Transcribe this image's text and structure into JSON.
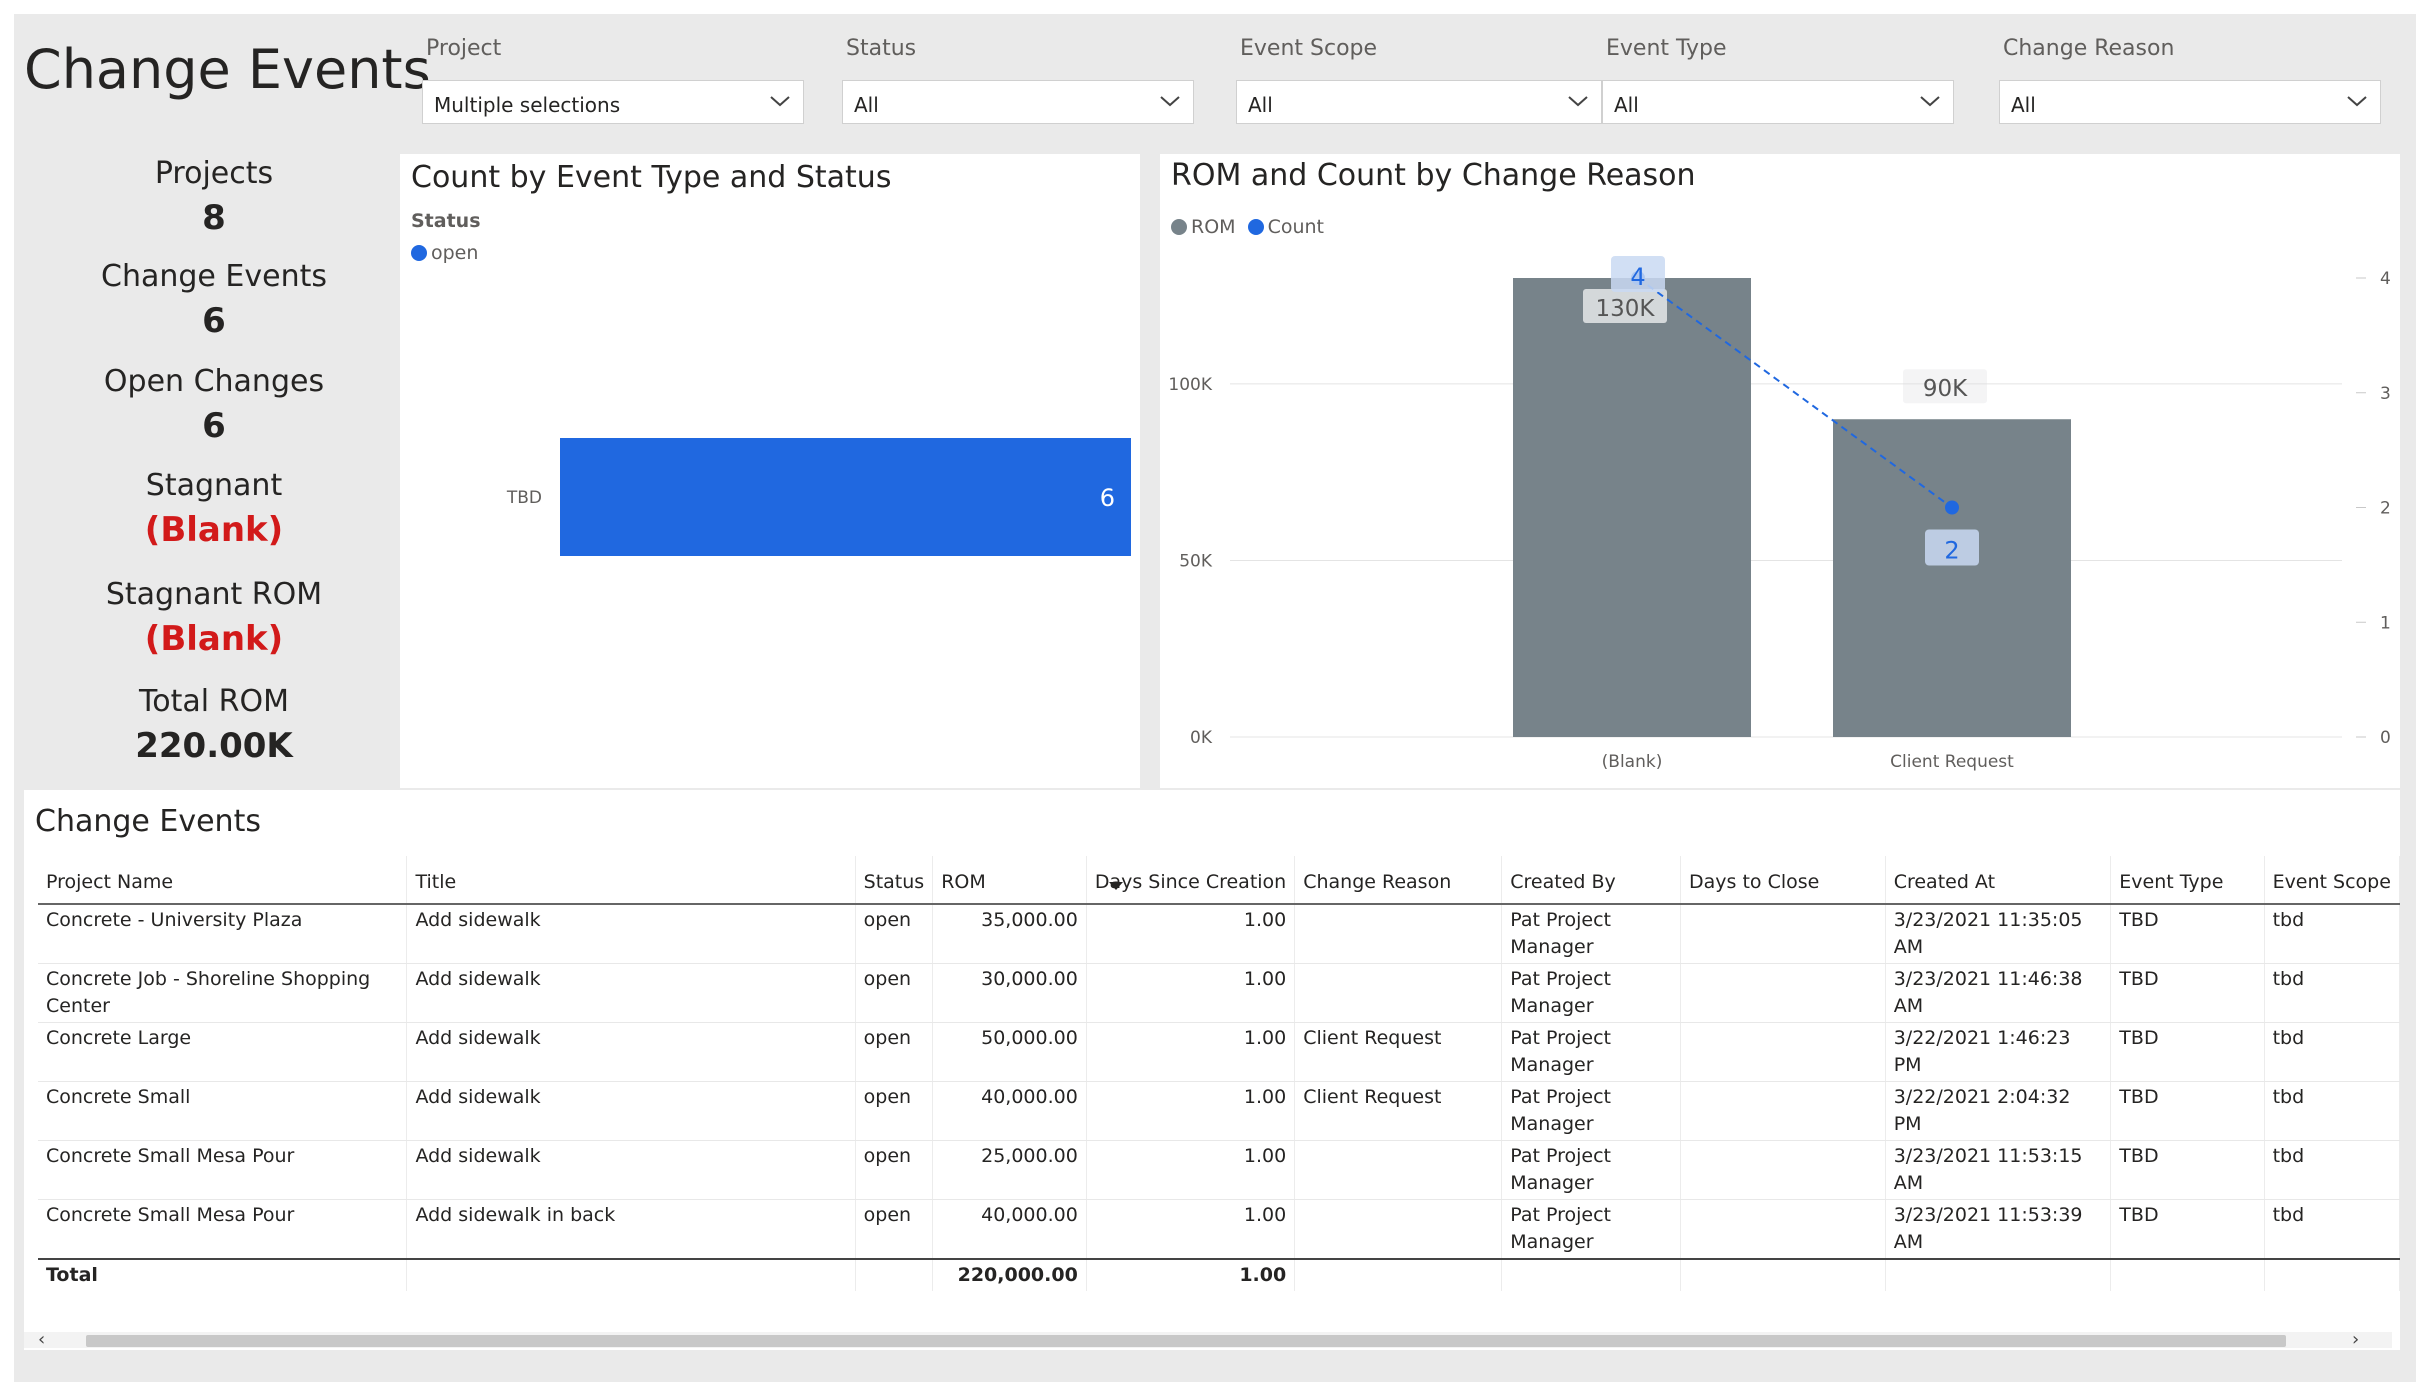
{
  "page": {
    "title": "Change Events"
  },
  "slicers": [
    {
      "label": "Project",
      "value": "Multiple selections"
    },
    {
      "label": "Status",
      "value": "All"
    },
    {
      "label": "Event Scope",
      "value": "All"
    },
    {
      "label": "Event Type",
      "value": "All"
    },
    {
      "label": "Change Reason",
      "value": "All"
    }
  ],
  "kpis": [
    {
      "label": "Projects",
      "value": "8",
      "color": "#252423"
    },
    {
      "label": "Change Events",
      "value": "6",
      "color": "#252423"
    },
    {
      "label": "Open Changes",
      "value": "6",
      "color": "#252423"
    },
    {
      "label": "Stagnant",
      "value": "(Blank)",
      "color": "#d21a1a"
    },
    {
      "label": "Stagnant ROM",
      "value": "(Blank)",
      "color": "#d21a1a"
    },
    {
      "label": "Total ROM",
      "value": "220.00K",
      "color": "#252423"
    }
  ],
  "colors": {
    "bar_blue": "#2068e0",
    "rom_gray": "#77838a",
    "count_blue": "#2068e0",
    "stagnant_red": "#d21a1a"
  },
  "chart_data": [
    {
      "type": "bar",
      "orientation": "horizontal",
      "title": "Count by Event Type and Status",
      "legend_title": "Status",
      "legend": [
        "open"
      ],
      "categories": [
        "TBD"
      ],
      "series": [
        {
          "name": "open",
          "values": [
            6
          ]
        }
      ],
      "data_labels": [
        "6"
      ]
    },
    {
      "type": "bar",
      "title": "ROM and Count by Change Reason",
      "legend": [
        "ROM",
        "Count"
      ],
      "categories": [
        "(Blank)",
        "Client Request"
      ],
      "series": [
        {
          "name": "ROM",
          "type": "bar",
          "values": [
            130000,
            90000
          ],
          "labels": [
            "130K",
            "90K"
          ]
        },
        {
          "name": "Count",
          "type": "line",
          "axis": "right",
          "values": [
            4,
            2
          ],
          "labels": [
            "4",
            "2"
          ]
        }
      ],
      "ylim": [
        0,
        130000
      ],
      "y_ticks": [
        "0K",
        "50K",
        "100K"
      ],
      "y2lim": [
        0,
        4
      ],
      "y2_ticks": [
        "0",
        "1",
        "2",
        "3",
        "4"
      ]
    }
  ],
  "table": {
    "title": "Change Events",
    "columns": [
      "Project Name",
      "Title",
      "Status",
      "ROM",
      "Days Since Creation",
      "Change Reason",
      "Created By",
      "Days to Close",
      "Created At",
      "Event Type",
      "Event Scope"
    ],
    "rows": [
      [
        "Concrete - University Plaza",
        "Add sidewalk",
        "open",
        "35,000.00",
        "1.00",
        "",
        "Pat Project Manager",
        "",
        "3/23/2021 11:35:05 AM",
        "TBD",
        "tbd"
      ],
      [
        "Concrete Job - Shoreline Shopping Center",
        "Add sidewalk",
        "open",
        "30,000.00",
        "1.00",
        "",
        "Pat Project Manager",
        "",
        "3/23/2021 11:46:38 AM",
        "TBD",
        "tbd"
      ],
      [
        "Concrete Large",
        "Add sidewalk",
        "open",
        "50,000.00",
        "1.00",
        "Client Request",
        "Pat Project Manager",
        "",
        "3/22/2021 1:46:23 PM",
        "TBD",
        "tbd"
      ],
      [
        "Concrete Small",
        "Add sidewalk",
        "open",
        "40,000.00",
        "1.00",
        "Client Request",
        "Pat Project Manager",
        "",
        "3/22/2021 2:04:32 PM",
        "TBD",
        "tbd"
      ],
      [
        "Concrete Small Mesa Pour",
        "Add sidewalk",
        "open",
        "25,000.00",
        "1.00",
        "",
        "Pat Project Manager",
        "",
        "3/23/2021 11:53:15 AM",
        "TBD",
        "tbd"
      ],
      [
        "Concrete Small Mesa Pour",
        "Add sidewalk in back",
        "open",
        "40,000.00",
        "1.00",
        "",
        "Pat Project Manager",
        "",
        "3/23/2021 11:53:39 AM",
        "TBD",
        "tbd"
      ]
    ],
    "total": [
      "Total",
      "",
      "",
      "220,000.00",
      "1.00",
      "",
      "",
      "",
      "",
      "",
      ""
    ]
  }
}
